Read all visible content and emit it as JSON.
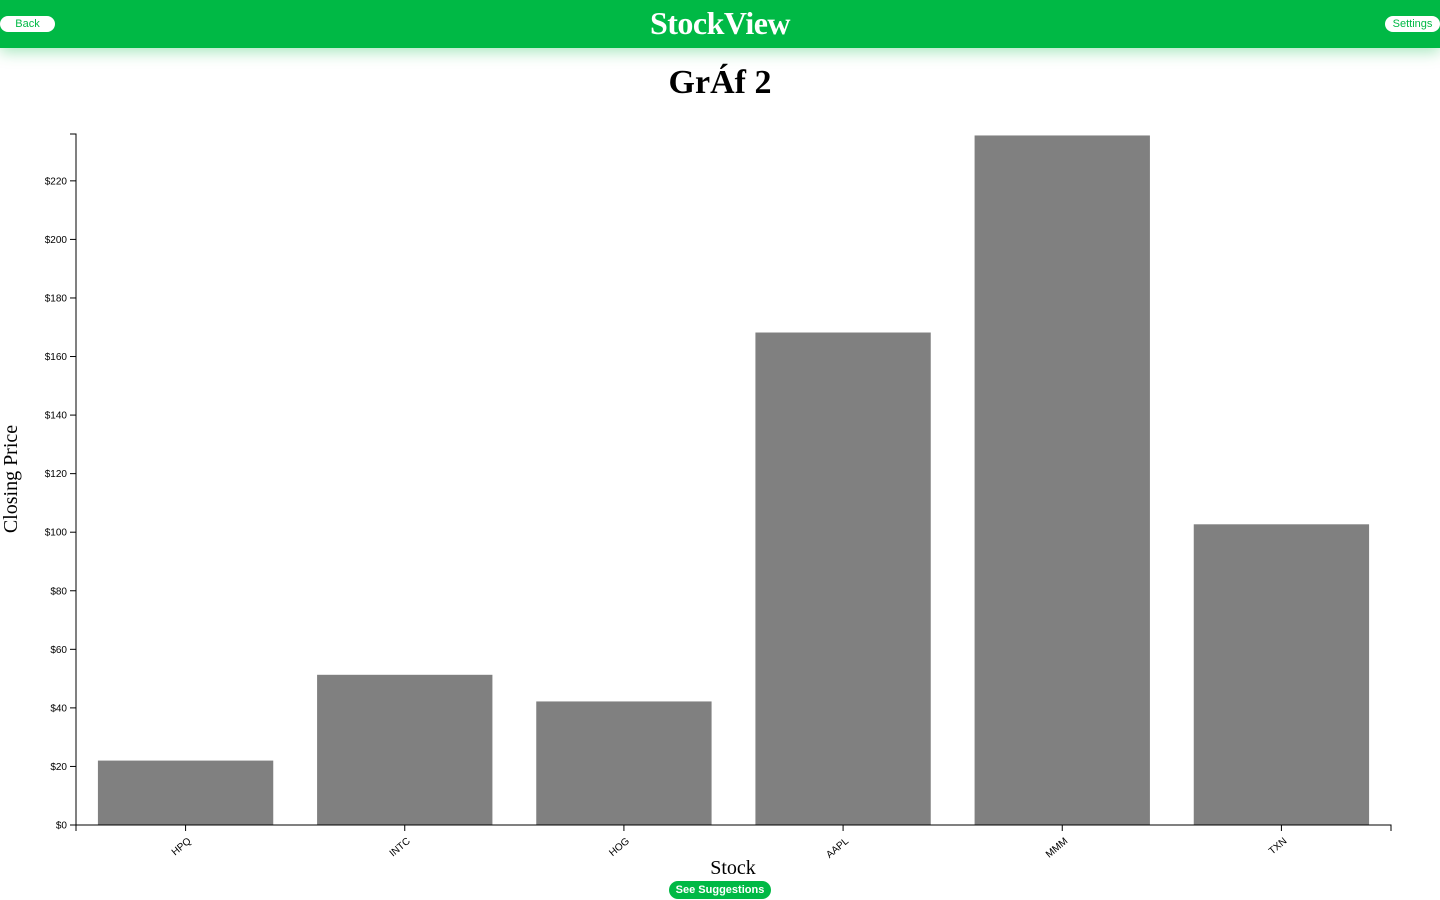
{
  "header": {
    "brand": "StockView",
    "back_label": "Back",
    "settings_label": "Settings"
  },
  "page": {
    "title": "GrÁf 2"
  },
  "actions": {
    "suggestions_label": "See Suggestions"
  },
  "colors": {
    "accent": "#00b945",
    "bar": "#808080"
  },
  "chart_data": {
    "type": "bar",
    "categories": [
      "HPQ",
      "INTC",
      "HOG",
      "AAPL",
      "MMM",
      "TXN"
    ],
    "values": [
      22,
      51.3,
      42.2,
      168.2,
      235.5,
      102.7
    ],
    "title": "",
    "xlabel": "Stock",
    "ylabel": "Closing Price",
    "ylim": [
      0,
      236
    ],
    "yticks": [
      0,
      20,
      40,
      60,
      80,
      100,
      120,
      140,
      160,
      180,
      200,
      220
    ],
    "ytick_format": "$",
    "grid": false
  }
}
